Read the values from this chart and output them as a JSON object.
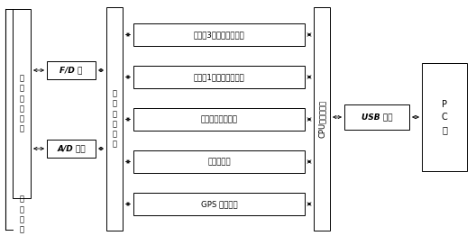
{
  "bg_color": "#ffffff",
  "fd_box_label": "F/D 转",
  "ad_box_label": "A/D 转换",
  "electronic_system_label": "电\n子\n处\n理\n系\n统",
  "cpu_label": "CPU中央处理器",
  "usb_label": "USB 模块",
  "pc_label": "P\nC\n机",
  "left_label": "电\n子\n测\n量\n总\n线",
  "bottom_label": "测\n量\n探\n头",
  "sensor_boxes": [
    "水听器3个以上测量方向",
    "水听器1个以上测量流速",
    "磁航向二维定位器",
    "压力传感器",
    "GPS 定位系统"
  ],
  "line_color": "#000000",
  "box_edge_color": "#000000",
  "text_color": "#000000",
  "lw": 0.7,
  "arrow_lw": 0.6,
  "font_size": 6.0,
  "fd_fs": 6.5,
  "cpu_fs": 6.0,
  "usb_fs": 6.5,
  "pc_fs": 7.0,
  "sensor_fs": 6.2
}
